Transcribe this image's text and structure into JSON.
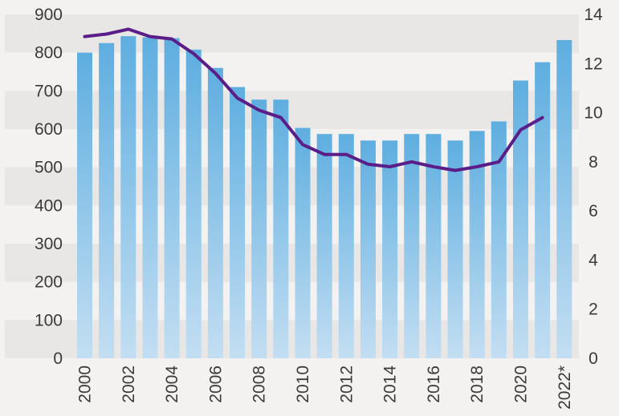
{
  "chart_data": {
    "type": "bar",
    "categories": [
      "2000",
      "2001",
      "2002",
      "2003",
      "2004",
      "2005",
      "2006",
      "2007",
      "2008",
      "2009",
      "2010",
      "2011",
      "2012",
      "2013",
      "2014",
      "2015",
      "2016",
      "2017",
      "2018",
      "2019",
      "2020",
      "2021",
      "2022*"
    ],
    "x_tick_labels": [
      "2000",
      "2002",
      "2004",
      "2006",
      "2008",
      "2010",
      "2012",
      "2014",
      "2016",
      "2018",
      "2020",
      "2022*"
    ],
    "series": [
      {
        "type": "bar",
        "axis": "left",
        "values": [
          800,
          825,
          843,
          840,
          838,
          808,
          760,
          710,
          677,
          677,
          603,
          587,
          587,
          570,
          570,
          587,
          587,
          570,
          595,
          620,
          727,
          775,
          833
        ]
      },
      {
        "type": "line",
        "axis": "right",
        "values": [
          13.1,
          13.2,
          13.4,
          13.1,
          13.0,
          12.4,
          11.6,
          10.6,
          10.1,
          9.8,
          8.7,
          8.3,
          8.3,
          7.9,
          7.8,
          8.0,
          7.8,
          7.65,
          7.8,
          8.0,
          9.3,
          9.8,
          null
        ]
      }
    ],
    "y_left": {
      "min": 0,
      "max": 900,
      "ticks": [
        0,
        100,
        200,
        300,
        400,
        500,
        600,
        700,
        800,
        900
      ]
    },
    "y_right": {
      "min": 0,
      "max": 14,
      "ticks": [
        0,
        2,
        4,
        6,
        8,
        10,
        12,
        14
      ]
    },
    "grid": "alternating horizontal bands",
    "colors": {
      "background": "#f3f2f0",
      "band": "#e8e7e5",
      "bar_top": "#5eaee0",
      "bar_bottom": "#c3def2",
      "line": "#5b1d87",
      "text": "#3a3a3a"
    }
  }
}
